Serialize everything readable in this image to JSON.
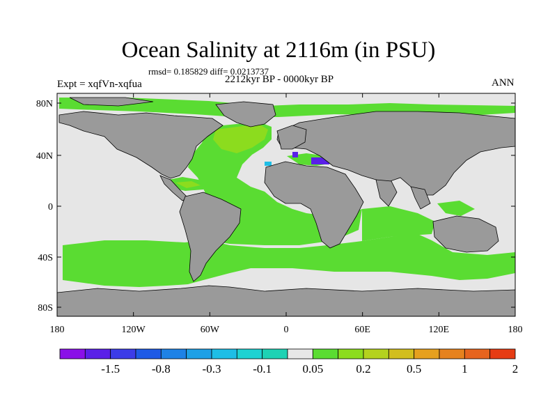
{
  "title": "Ocean Salinity at 2116m (in PSU)",
  "stats": "rmsd= 0.185829 diff= 0.0213737",
  "period": "2212kyr BP - 0000kyr BP",
  "expt": "Expt = xqfVn-xqfua",
  "season": "ANN",
  "axes": {
    "x_ticks": [
      "180",
      "120W",
      "60W",
      "0",
      "60E",
      "120E",
      "180"
    ],
    "y_ticks": [
      "80N",
      "40N",
      "0",
      "40S",
      "80S"
    ]
  },
  "colorbar": {
    "colors": [
      "#8a10e8",
      "#5a20e8",
      "#3c3ce8",
      "#1e5ae6",
      "#1e82e6",
      "#1ea0e6",
      "#1ebee6",
      "#1ed2d2",
      "#1ed2b4",
      "#e8e8e8",
      "#5adc32",
      "#8cdc1e",
      "#b4d21e",
      "#d2be1e",
      "#e6a01e",
      "#e6821e",
      "#e6641e",
      "#e63c14"
    ],
    "labels": [
      {
        "text": "-1.5",
        "boundary": 2
      },
      {
        "text": "-0.8",
        "boundary": 4
      },
      {
        "text": "-0.3",
        "boundary": 6
      },
      {
        "text": "-0.1",
        "boundary": 8
      },
      {
        "text": "0.05",
        "boundary": 10
      },
      {
        "text": "0.2",
        "boundary": 12
      },
      {
        "text": "0.5",
        "boundary": 14
      },
      {
        "text": "1",
        "boundary": 16
      },
      {
        "text": "2",
        "boundary": 18
      }
    ]
  },
  "map_colors": {
    "land": "#9a9a9a",
    "near_zero": "#e6e6e6",
    "pos_small": "#5adc32",
    "pos_mid": "#8cdc1e",
    "neg_light": "#1ebee6",
    "neg_mid": "#1e82e6",
    "neg_strong": "#5a20e8",
    "coast": "#000000"
  }
}
